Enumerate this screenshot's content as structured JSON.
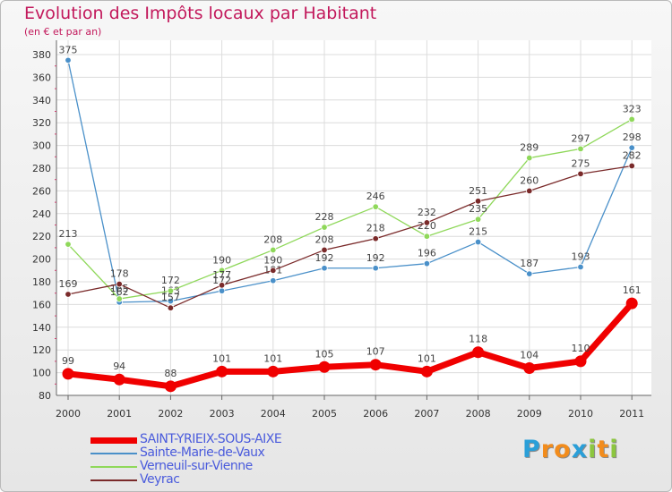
{
  "title": "Evolution des Impôts locaux par Habitant",
  "subtitle": "(en € et par an)",
  "logo": {
    "text": "Proxiti",
    "letters": [
      "P",
      "r",
      "o",
      "x",
      "i",
      "t",
      "i"
    ],
    "colors": [
      "#2a9fd8",
      "#f28c1c",
      "#f28c1c",
      "#2a9fd8",
      "#8cc63f",
      "#f28c1c",
      "#8cc63f"
    ]
  },
  "chart_data": {
    "type": "line",
    "title": "Evolution des Impôts locaux par Habitant",
    "subtitle": "(en € et par an)",
    "x": [
      "2000",
      "2001",
      "2002",
      "2003",
      "2004",
      "2005",
      "2006",
      "2007",
      "2008",
      "2009",
      "2010",
      "2011"
    ],
    "ylim": [
      80,
      380
    ],
    "yticks": [
      80,
      100,
      120,
      140,
      160,
      180,
      200,
      220,
      240,
      260,
      280,
      300,
      320,
      340,
      360,
      380
    ],
    "grid": true,
    "legend_position": "bottom-left",
    "series": [
      {
        "name": "Sainte-Marie-de-Vaux",
        "color": "#4a90c9",
        "values": [
          375,
          162,
          163,
          172,
          181,
          192,
          192,
          196,
          215,
          187,
          193,
          298
        ],
        "labels": [
          "375",
          "162",
          "163",
          "172",
          "181",
          "192",
          "192",
          "196",
          "215",
          "187",
          "193",
          "298"
        ]
      },
      {
        "name": "Verneuil-sur-Vienne",
        "color": "#8fd85a",
        "values": [
          213,
          165,
          172,
          190,
          208,
          228,
          246,
          220,
          235,
          289,
          297,
          323
        ],
        "labels": [
          "213",
          "165",
          "172",
          "190",
          "208",
          "228",
          "246",
          "220",
          "235",
          "289",
          "297",
          "323"
        ]
      },
      {
        "name": "Veyrac",
        "color": "#7a2a2a",
        "values": [
          169,
          178,
          157,
          177,
          190,
          208,
          218,
          232,
          251,
          260,
          275,
          282
        ],
        "labels": [
          "169",
          "178",
          "157",
          "177",
          "190",
          "208",
          "218",
          "232",
          "251",
          "260",
          "275",
          "282"
        ]
      },
      {
        "name": "SAINT-YRIEIX-SOUS-AIXE",
        "color": "#f00000",
        "values": [
          99,
          94,
          88,
          101,
          101,
          105,
          107,
          101,
          118,
          104,
          110,
          161
        ],
        "labels": [
          "99",
          "94",
          "88",
          "101",
          "101",
          "105",
          "107",
          "101",
          "118",
          "104",
          "110",
          "161"
        ]
      }
    ],
    "legend_order": [
      "SAINT-YRIEIX-SOUS-AIXE",
      "Sainte-Marie-de-Vaux",
      "Verneuil-sur-Vienne",
      "Veyrac"
    ]
  }
}
